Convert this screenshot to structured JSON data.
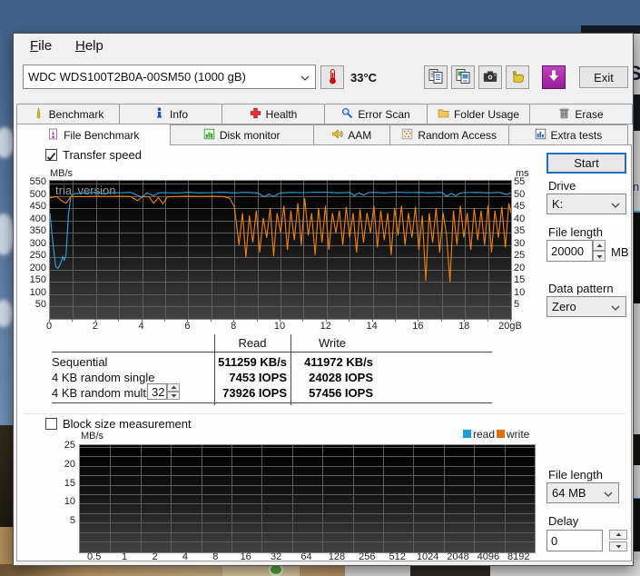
{
  "background_window": {
    "fragment_s": "S",
    "fragment_in": "in"
  },
  "window": {
    "menu": {
      "file": "File",
      "help": "Help"
    },
    "toolbar": {
      "drive_selector_value": "WDC  WDS100T2B0A-00SM50 (1000 gB)",
      "temperature": "33°C",
      "exit_label": "Exit",
      "icons": [
        "thermometer-icon",
        "copy-text-icon",
        "copy-image-icon",
        "camera-icon",
        "hand-icon",
        "save-icon"
      ]
    },
    "tabs_row1": [
      {
        "label": "Benchmark",
        "icon": "benchmark-icon"
      },
      {
        "label": "Info",
        "icon": "info-icon"
      },
      {
        "label": "Health",
        "icon": "health-icon"
      },
      {
        "label": "Error Scan",
        "icon": "error-scan-icon"
      },
      {
        "label": "Folder Usage",
        "icon": "folder-usage-icon"
      },
      {
        "label": "Erase",
        "icon": "erase-icon"
      }
    ],
    "tabs_row2": [
      {
        "label": "File Benchmark",
        "icon": "file-benchmark-icon",
        "active": true
      },
      {
        "label": "Disk monitor",
        "icon": "disk-monitor-icon"
      },
      {
        "label": "AAM",
        "icon": "aam-icon"
      },
      {
        "label": "Random Access",
        "icon": "random-access-icon"
      },
      {
        "label": "Extra tests",
        "icon": "extra-tests-icon"
      }
    ]
  },
  "file_benchmark": {
    "transfer_speed_label": "Transfer speed",
    "start_button": "Start",
    "drive_label": "Drive",
    "drive_value": "K:",
    "file_length_label": "File length",
    "file_length_value": "20000",
    "file_length_unit": "MB",
    "data_pattern_label": "Data pattern",
    "data_pattern_value": "Zero",
    "results": {
      "read_header": "Read",
      "write_header": "Write",
      "rows": [
        {
          "label": "Sequential",
          "read": "511259 KB/s",
          "write": "411972 KB/s"
        },
        {
          "label": "4 KB random single",
          "read": "7453 IOPS",
          "write": "24028 IOPS"
        },
        {
          "label": "4 KB random multi",
          "queue_depth": "32",
          "read": "73926 IOPS",
          "write": "57456 IOPS"
        }
      ]
    },
    "block_size_label": "Block size measurement",
    "legend": [
      {
        "label": "read",
        "color": "#1e9cd7"
      },
      {
        "label": "write",
        "color": "#e06f00"
      }
    ],
    "file_length2_label": "File length",
    "file_length2_value": "64 MB",
    "delay_label": "Delay",
    "delay_value": "0"
  },
  "chart_data": [
    {
      "type": "line",
      "title": "Transfer speed",
      "watermark": "trial version",
      "ylabel_left": "MB/s",
      "ylabel_right": "ms",
      "xunit": "gB",
      "xlim": [
        0,
        20
      ],
      "ylim_left": [
        0,
        561
      ],
      "grid": true,
      "yticks_left": [
        550,
        500,
        450,
        400,
        350,
        300,
        250,
        200,
        150,
        100,
        50
      ],
      "yticks_right": [
        55,
        50,
        45,
        40,
        35,
        30,
        25,
        20,
        15,
        10,
        5
      ],
      "xticks": [
        "0",
        "2",
        "4",
        "6",
        "8",
        "10",
        "12",
        "14",
        "16",
        "18",
        "20gB"
      ],
      "series": [
        {
          "name": "read",
          "color": "#2da6e0",
          "points": [
            [
              0,
              430
            ],
            [
              0.15,
              290
            ],
            [
              0.25,
              212
            ],
            [
              0.35,
              206
            ],
            [
              0.45,
              222
            ],
            [
              0.55,
              252
            ],
            [
              0.62,
              238
            ],
            [
              0.7,
              262
            ],
            [
              0.8,
              420
            ],
            [
              0.9,
              495
            ],
            [
              1,
              508
            ],
            [
              1.5,
              512
            ],
            [
              2,
              514
            ],
            [
              2.3,
              508
            ],
            [
              2.6,
              513
            ],
            [
              3,
              512
            ],
            [
              3.5,
              514
            ],
            [
              4,
              494
            ],
            [
              4.2,
              512
            ],
            [
              4.5,
              500
            ],
            [
              4.7,
              512
            ],
            [
              5,
              513
            ],
            [
              5.5,
              511
            ],
            [
              6,
              514
            ],
            [
              6.5,
              512
            ],
            [
              7,
              513
            ],
            [
              7.5,
              514
            ],
            [
              8,
              512
            ],
            [
              8.5,
              514
            ],
            [
              9,
              512
            ],
            [
              9.3,
              496
            ],
            [
              9.5,
              507
            ],
            [
              9.7,
              497
            ],
            [
              10,
              512
            ],
            [
              10.5,
              514
            ],
            [
              11,
              513
            ],
            [
              11.5,
              515
            ],
            [
              12,
              514
            ],
            [
              12.5,
              512
            ],
            [
              13,
              514
            ],
            [
              13.2,
              500
            ],
            [
              13.4,
              512
            ],
            [
              13.6,
              502
            ],
            [
              13.8,
              513
            ],
            [
              14,
              514
            ],
            [
              14.5,
              512
            ],
            [
              15,
              515
            ],
            [
              15.5,
              513
            ],
            [
              16,
              514
            ],
            [
              16.5,
              512
            ],
            [
              17,
              514
            ],
            [
              17.2,
              498
            ],
            [
              17.4,
              510
            ],
            [
              17.6,
              500
            ],
            [
              17.8,
              512
            ],
            [
              18,
              513
            ],
            [
              18.5,
              514
            ],
            [
              19,
              512
            ],
            [
              19.5,
              514
            ],
            [
              19.8,
              505
            ],
            [
              20,
              512
            ]
          ]
        },
        {
          "name": "write",
          "color": "#ef820e",
          "points": [
            [
              0,
              492
            ],
            [
              0.3,
              497
            ],
            [
              0.5,
              480
            ],
            [
              0.7,
              470
            ],
            [
              0.9,
              496
            ],
            [
              1.2,
              497
            ],
            [
              1.5,
              496
            ],
            [
              1.8,
              497
            ],
            [
              2,
              498
            ],
            [
              2.5,
              497
            ],
            [
              3,
              498
            ],
            [
              3.5,
              497
            ],
            [
              3.8,
              480
            ],
            [
              4,
              497
            ],
            [
              4.3,
              496
            ],
            [
              4.5,
              470
            ],
            [
              4.7,
              493
            ],
            [
              4.9,
              468
            ],
            [
              5.1,
              496
            ],
            [
              5.5,
              497
            ],
            [
              6,
              498
            ],
            [
              6.5,
              497
            ],
            [
              7,
              498
            ],
            [
              7.5,
              497
            ],
            [
              7.8,
              490
            ],
            [
              8,
              455
            ],
            [
              8.1,
              380
            ],
            [
              8.2,
              300
            ],
            [
              8.35,
              430
            ],
            [
              8.5,
              250
            ],
            [
              8.65,
              420
            ],
            [
              8.8,
              310
            ],
            [
              8.95,
              440
            ],
            [
              9.1,
              270
            ],
            [
              9.25,
              410
            ],
            [
              9.4,
              330
            ],
            [
              9.55,
              450
            ],
            [
              9.7,
              255
            ],
            [
              9.85,
              430
            ],
            [
              10,
              350
            ],
            [
              10.15,
              460
            ],
            [
              10.3,
              280
            ],
            [
              10.45,
              440
            ],
            [
              10.6,
              320
            ],
            [
              10.75,
              470
            ],
            [
              10.9,
              300
            ],
            [
              11.05,
              490
            ],
            [
              11.2,
              340
            ],
            [
              11.35,
              430
            ],
            [
              11.5,
              260
            ],
            [
              11.65,
              450
            ],
            [
              11.8,
              310
            ],
            [
              11.95,
              460
            ],
            [
              12.1,
              280
            ],
            [
              12.25,
              430
            ],
            [
              12.4,
              350
            ],
            [
              12.55,
              440
            ],
            [
              12.7,
              300
            ],
            [
              12.85,
              455
            ],
            [
              13,
              330
            ],
            [
              13.15,
              430
            ],
            [
              13.3,
              270
            ],
            [
              13.45,
              445
            ],
            [
              13.6,
              310
            ],
            [
              13.75,
              430
            ],
            [
              13.9,
              350
            ],
            [
              14.05,
              460
            ],
            [
              14.2,
              290
            ],
            [
              14.35,
              440
            ],
            [
              14.5,
              320
            ],
            [
              14.65,
              430
            ],
            [
              14.8,
              260
            ],
            [
              14.95,
              450
            ],
            [
              15.1,
              340
            ],
            [
              15.25,
              460
            ],
            [
              15.4,
              300
            ],
            [
              15.55,
              430
            ],
            [
              15.7,
              330
            ],
            [
              15.85,
              455
            ],
            [
              16,
              280
            ],
            [
              16.15,
              420
            ],
            [
              16.3,
              155
            ],
            [
              16.45,
              430
            ],
            [
              16.6,
              310
            ],
            [
              16.75,
              450
            ],
            [
              16.9,
              270
            ],
            [
              17.05,
              430
            ],
            [
              17.2,
              340
            ],
            [
              17.35,
              150
            ],
            [
              17.5,
              440
            ],
            [
              17.65,
              300
            ],
            [
              17.8,
              460
            ],
            [
              17.95,
              330
            ],
            [
              18.1,
              430
            ],
            [
              18.25,
              280
            ],
            [
              18.4,
              450
            ],
            [
              18.55,
              320
            ],
            [
              18.7,
              440
            ],
            [
              18.85,
              300
            ],
            [
              19,
              460
            ],
            [
              19.15,
              270
            ],
            [
              19.3,
              440
            ],
            [
              19.45,
              330
            ],
            [
              19.6,
              455
            ],
            [
              19.75,
              290
            ],
            [
              19.9,
              470
            ],
            [
              20,
              430
            ]
          ]
        }
      ]
    },
    {
      "type": "line",
      "title": "Block size measurement",
      "ylabel": "MB/s",
      "ylim": [
        0,
        25
      ],
      "grid": true,
      "legend_position": "top-right",
      "yticks": [
        25,
        20,
        15,
        10,
        5
      ],
      "minor_ygrid_step": 2.5,
      "xticks": [
        "0.5",
        "1",
        "2",
        "4",
        "8",
        "16",
        "32",
        "64",
        "128",
        "256",
        "512",
        "1024",
        "2048",
        "4096",
        "8192"
      ],
      "series": []
    }
  ]
}
